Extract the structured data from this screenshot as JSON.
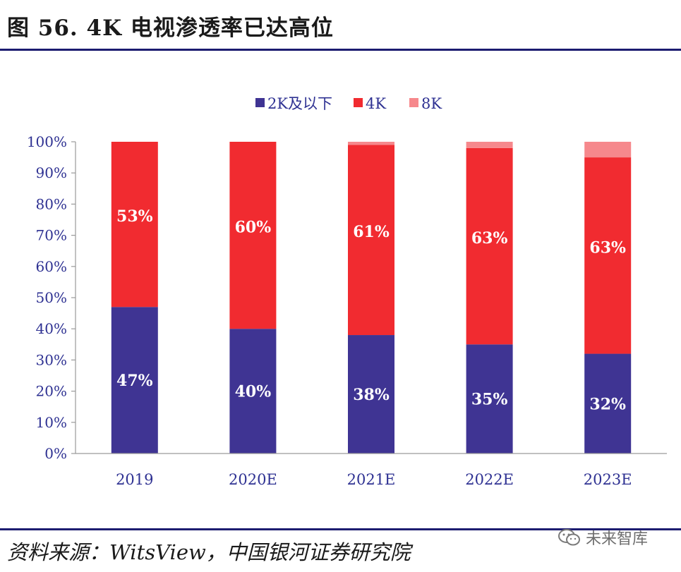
{
  "figure": {
    "title": "图 56. 4K 电视渗透率已达高位",
    "source": "资料来源：WitsView，中国银河证券研究院",
    "watermark": "未来智库"
  },
  "colors": {
    "2k": "#3f3493",
    "4k": "#f12b30",
    "8k": "#f6888c",
    "axis_text": "#2e3192",
    "rule": "#1c1c70"
  },
  "chart_data": {
    "type": "bar",
    "stacked": true,
    "categories": [
      "2019",
      "2020E",
      "2021E",
      "2022E",
      "2023E"
    ],
    "series": [
      {
        "name": "2K及以下",
        "values": [
          47,
          40,
          38,
          35,
          32
        ],
        "labels": [
          "47%",
          "40%",
          "38%",
          "35%",
          "32%"
        ]
      },
      {
        "name": "4K",
        "values": [
          53,
          60,
          61,
          63,
          63
        ],
        "labels": [
          "53%",
          "60%",
          "61%",
          "63%",
          "63%"
        ]
      },
      {
        "name": "8K",
        "values": [
          0,
          0,
          1,
          2,
          5
        ],
        "labels": [
          "",
          "",
          "",
          "",
          ""
        ]
      }
    ],
    "ylim": [
      0,
      100
    ],
    "yticks": [
      "0%",
      "10%",
      "20%",
      "30%",
      "40%",
      "50%",
      "60%",
      "70%",
      "80%",
      "90%",
      "100%"
    ],
    "legend_position": "top-center",
    "grid": false
  }
}
